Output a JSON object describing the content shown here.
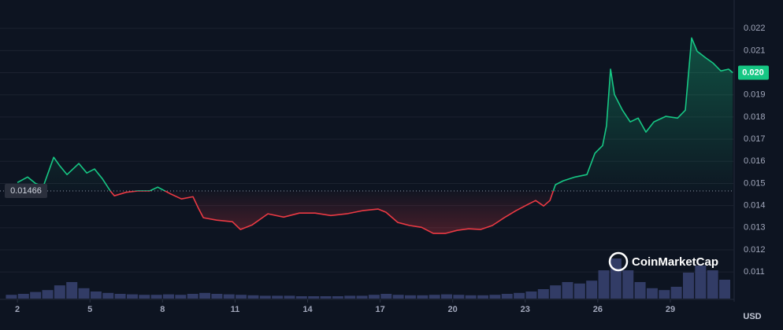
{
  "chart_data": {
    "type": "line",
    "x": [
      2.0,
      2.42,
      2.75,
      3.07,
      3.5,
      3.73,
      4.05,
      4.54,
      4.87,
      5.19,
      5.52,
      5.84,
      6.01,
      6.5,
      6.98,
      7.47,
      7.8,
      8.29,
      8.78,
      9.26,
      9.49,
      9.69,
      10.24,
      10.89,
      11.22,
      11.71,
      12.36,
      13.01,
      13.66,
      14.31,
      14.96,
      15.62,
      16.27,
      16.92,
      17.24,
      17.73,
      18.22,
      18.71,
      19.2,
      19.69,
      20.18,
      20.66,
      21.15,
      21.64,
      22.13,
      22.62,
      23.11,
      23.43,
      23.76,
      24.02,
      24.25,
      24.57,
      25.06,
      25.55,
      25.88,
      26.2,
      26.36,
      26.53,
      26.69,
      27.02,
      27.34,
      27.67,
      27.99,
      28.32,
      28.81,
      29.3,
      29.62,
      29.88,
      30.11,
      30.44,
      30.76,
      31.09,
      31.41,
      31.58
    ],
    "values": [
      0.01504,
      0.01529,
      0.015,
      0.01487,
      0.01618,
      0.01583,
      0.0154,
      0.0159,
      0.01547,
      0.01565,
      0.0152,
      0.01466,
      0.01444,
      0.0146,
      0.01466,
      0.01466,
      0.01483,
      0.01455,
      0.0143,
      0.0144,
      0.01387,
      0.01345,
      0.01334,
      0.01327,
      0.01292,
      0.01313,
      0.01363,
      0.01348,
      0.01366,
      0.01366,
      0.01355,
      0.01363,
      0.01377,
      0.01384,
      0.0137,
      0.01324,
      0.0131,
      0.01302,
      0.01274,
      0.01274,
      0.01288,
      0.01295,
      0.01292,
      0.0131,
      0.01345,
      0.01377,
      0.01405,
      0.01423,
      0.01398,
      0.01423,
      0.01494,
      0.01512,
      0.01529,
      0.0154,
      0.01636,
      0.01671,
      0.0176,
      0.02016,
      0.01902,
      0.01831,
      0.01778,
      0.01795,
      0.01732,
      0.01778,
      0.01803,
      0.01795,
      0.01831,
      0.02157,
      0.02097,
      0.02069,
      0.02044,
      0.02008,
      0.02016,
      0.02
    ],
    "up_color": "#16c784",
    "down_color": "#ea3943",
    "baseline": 0.01466,
    "last_price": {
      "value": 0.02,
      "label": "0.020"
    },
    "volume": {
      "color": "#3a4372",
      "x": [
        1.75,
        2.25,
        2.75,
        3.25,
        3.75,
        4.25,
        4.75,
        5.25,
        5.75,
        6.25,
        6.75,
        7.25,
        7.75,
        8.25,
        8.75,
        9.25,
        9.75,
        10.25,
        10.75,
        11.25,
        11.75,
        12.25,
        12.75,
        13.25,
        13.75,
        14.25,
        14.75,
        15.25,
        15.75,
        16.25,
        16.75,
        17.25,
        17.75,
        18.25,
        18.75,
        19.25,
        19.75,
        20.25,
        20.75,
        21.25,
        21.75,
        22.25,
        22.75,
        23.25,
        23.75,
        24.25,
        24.75,
        25.25,
        25.75,
        26.25,
        26.75,
        27.25,
        27.75,
        28.25,
        28.75,
        29.25,
        29.75,
        30.25,
        30.75,
        31.25
      ],
      "values": [
        8,
        10,
        14,
        18,
        28,
        35,
        22,
        15,
        12,
        10,
        9,
        8,
        8,
        9,
        8,
        10,
        12,
        10,
        9,
        8,
        7,
        6,
        6,
        6,
        5,
        5,
        5,
        5,
        6,
        6,
        8,
        10,
        8,
        7,
        7,
        8,
        9,
        8,
        7,
        7,
        8,
        10,
        12,
        15,
        20,
        28,
        35,
        32,
        38,
        60,
        85,
        60,
        35,
        22,
        18,
        25,
        55,
        70,
        60,
        40
      ],
      "y2lim": [
        0,
        100
      ]
    },
    "xlim": [
      1.54,
      31.64
    ],
    "xticks": [
      2,
      5,
      8,
      11,
      14,
      17,
      20,
      23,
      26,
      29
    ],
    "ylim": [
      0.0098,
      0.023
    ],
    "yticks": [
      0.011,
      0.012,
      0.013,
      0.014,
      0.015,
      0.016,
      0.017,
      0.018,
      0.019,
      {
        "value": 0.02,
        "label": "0.020"
      },
      0.021,
      0.022
    ],
    "grid": true,
    "currency": "USD",
    "watermark": "CoinMarketCap"
  }
}
